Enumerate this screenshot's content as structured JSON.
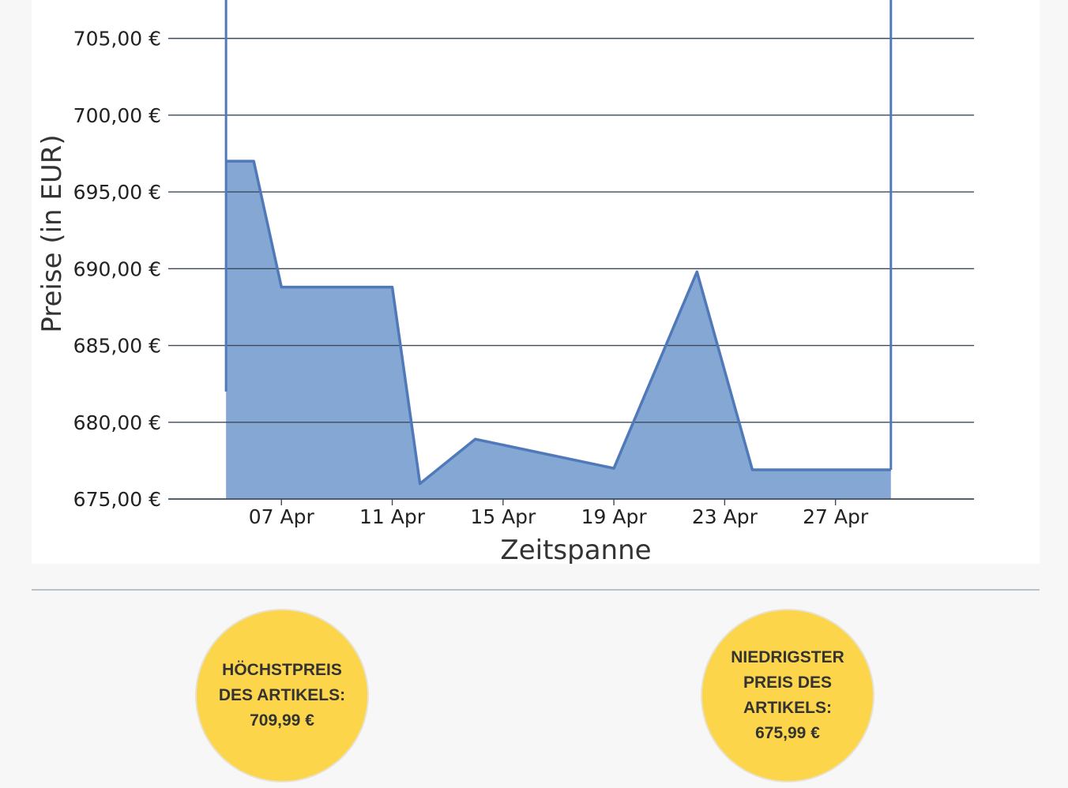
{
  "colors": {
    "area_fill": "#84a7d4",
    "area_stroke": "#4f79b8",
    "grid": "#3d4a59",
    "axis_text": "#222222",
    "circle": "#fcd54a"
  },
  "chart_data": {
    "type": "area",
    "ylabel": "Preise (in EUR)",
    "xlabel": "Zeitspanne",
    "ylim": [
      675,
      707.5
    ],
    "yticks": [
      675,
      680,
      685,
      690,
      695,
      700,
      705
    ],
    "ytick_labels": [
      "675,00 €",
      "680,00 €",
      "685,00 €",
      "690,00 €",
      "695,00 €",
      "700,00 €",
      "705,00 €"
    ],
    "xlim": [
      "2025-04-03",
      "2025-05-02"
    ],
    "xticks": [
      "2025-04-07",
      "2025-04-11",
      "2025-04-15",
      "2025-04-19",
      "2025-04-23",
      "2025-04-27"
    ],
    "xtick_labels": [
      "07 Apr",
      "11 Apr",
      "15 Apr",
      "19 Apr",
      "23 Apr",
      "27 Apr"
    ],
    "grid": true,
    "series": [
      {
        "x": [
          "2025-04-05",
          "2025-04-06",
          "2025-04-07",
          "2025-04-11",
          "2025-04-12",
          "2025-04-14",
          "2025-04-19",
          "2025-04-22",
          "2025-04-24",
          "2025-04-29"
        ],
        "y": [
          697,
          697,
          688.8,
          688.8,
          676,
          678.9,
          677,
          689.8,
          676.9,
          676.9
        ]
      }
    ]
  },
  "stats": {
    "max_label": "HÖCHSTPREIS DES ARTIKELS:",
    "max_value": "709,99 €",
    "min_label": "NIEDRIGSTER PREIS DES ARTIKELS:",
    "min_value": "675,99 €"
  }
}
